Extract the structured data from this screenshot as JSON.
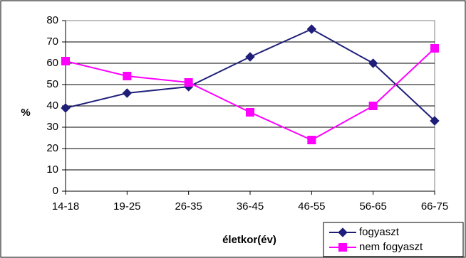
{
  "chart_data": {
    "type": "line",
    "categories": [
      "14-18",
      "19-25",
      "26-35",
      "36-45",
      "46-55",
      "56-65",
      "66-75"
    ],
    "series": [
      {
        "name": "fogyaszt",
        "values": [
          39,
          46,
          49,
          63,
          76,
          60,
          33
        ],
        "color": "#1f1f7a",
        "marker": "diamond"
      },
      {
        "name": "nem fogyaszt",
        "values": [
          61,
          54,
          51,
          37,
          24,
          40,
          67
        ],
        "color": "#ff00ff",
        "marker": "square"
      }
    ],
    "xlabel": "életkor(év)",
    "ylabel": "%",
    "ylim": [
      0,
      80
    ],
    "yticks": [
      0,
      10,
      20,
      30,
      40,
      50,
      60,
      70,
      80
    ],
    "grid": true,
    "legend_position": "bottom-right"
  }
}
